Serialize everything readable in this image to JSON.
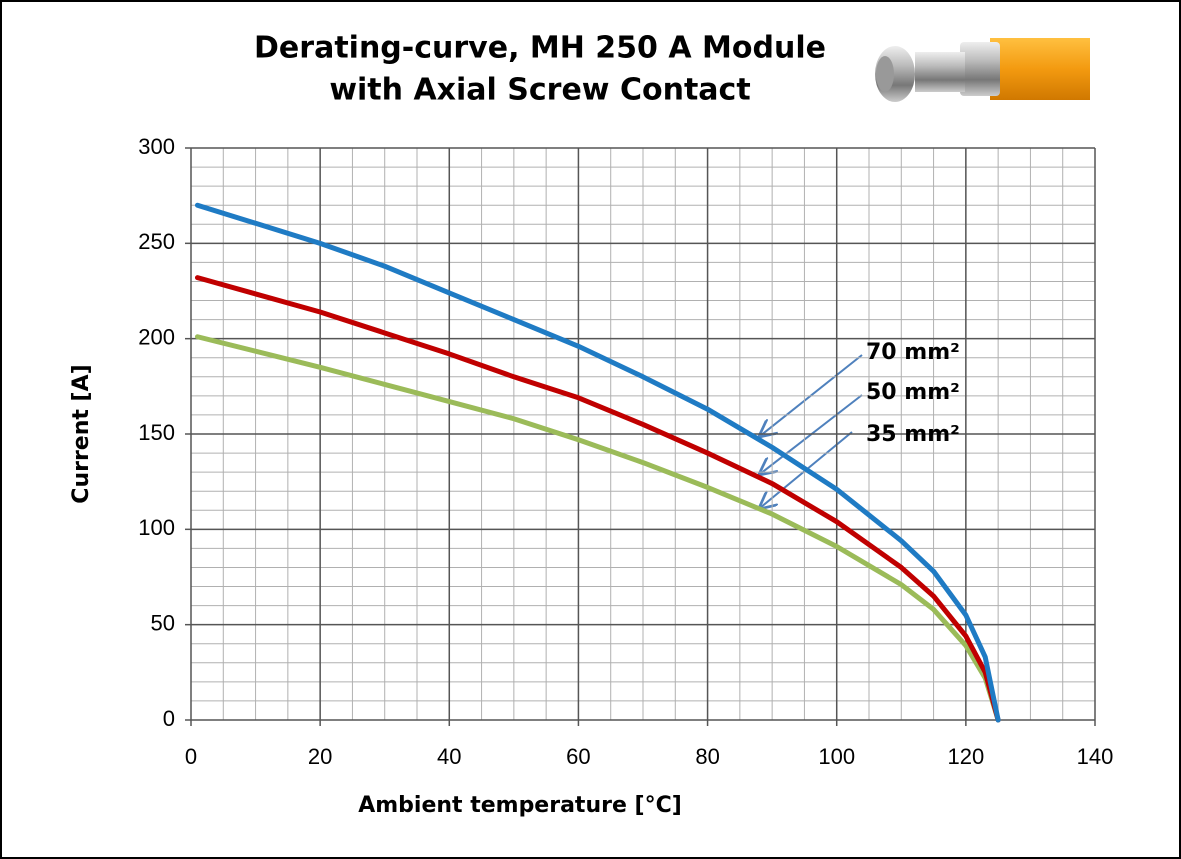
{
  "chart_data": {
    "type": "line",
    "title": "Derating-curve, MH 250 A Module",
    "subtitle": "with Axial Screw Contact",
    "x_label": "Ambient temperature [°C]",
    "y_label": "Current [A]",
    "x": [
      1,
      20,
      30,
      40,
      50,
      60,
      70,
      80,
      90,
      100,
      110,
      115,
      120,
      123,
      125
    ],
    "series": [
      {
        "name": "70 mm²",
        "color": "#1f7bc4",
        "values": [
          270,
          250,
          238,
          224,
          210,
          196,
          180,
          163,
          143,
          121,
          94,
          78,
          55,
          33,
          0
        ]
      },
      {
        "name": "50 mm²",
        "color": "#c00000",
        "values": [
          232,
          214,
          203,
          192,
          180,
          169,
          155,
          140,
          124,
          104,
          80,
          65,
          44,
          25,
          0
        ]
      },
      {
        "name": "35 mm²",
        "color": "#9bbb59",
        "values": [
          201,
          185,
          176,
          167,
          158,
          147,
          135,
          122,
          108,
          91,
          71,
          58,
          39,
          22,
          0
        ]
      }
    ],
    "xlim": [
      0,
      140
    ],
    "xticks": [
      0,
      20,
      40,
      60,
      80,
      100,
      120,
      140
    ],
    "ylim": [
      0,
      300
    ],
    "yticks": [
      0,
      50,
      100,
      150,
      200,
      250,
      300
    ],
    "xminor": 5,
    "yminor": 10,
    "grid": true
  }
}
